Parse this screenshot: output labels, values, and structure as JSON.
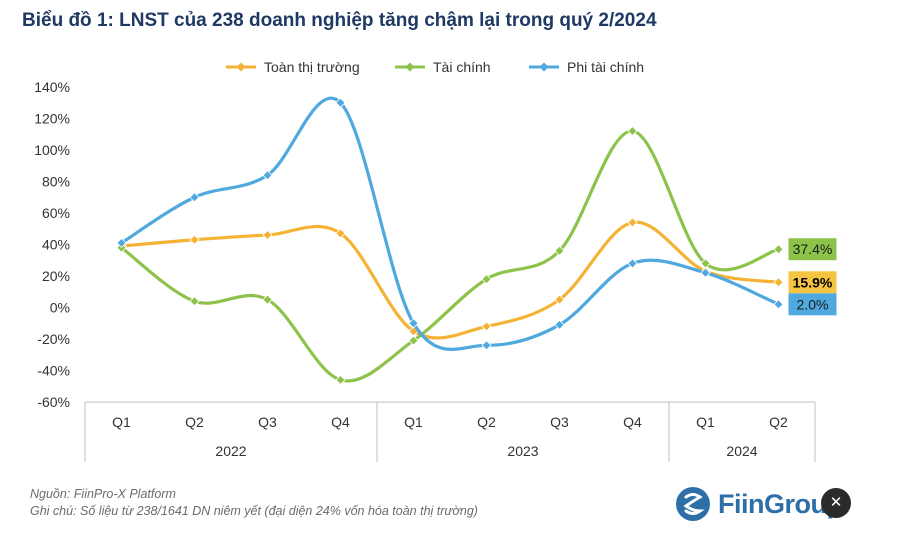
{
  "title": "Biểu đồ 1: LNST của 238 doanh nghiệp tăng chậm lại trong quý 2/2024",
  "footer": {
    "source": "Nguồn: FiinPro-X Platform",
    "note": "Ghi chú: Số liệu từ 238/1641 DN niêm yết (đại diện 24% vốn hóa toàn thị trường)"
  },
  "logo": {
    "text": "FiinGroup",
    "icon": "fiingroup-logo-icon"
  },
  "corner_badge": {
    "glyph": "✕",
    "icon": "close-icon"
  },
  "chart_data": {
    "type": "line",
    "categories": [
      "Q1",
      "Q2",
      "Q3",
      "Q4",
      "Q1",
      "Q2",
      "Q3",
      "Q4",
      "Q1",
      "Q2"
    ],
    "groups": [
      {
        "label": "2022",
        "span": 4
      },
      {
        "label": "2023",
        "span": 4
      },
      {
        "label": "2024",
        "span": 2
      }
    ],
    "yticks": [
      "140%",
      "120%",
      "100%",
      "80%",
      "60%",
      "40%",
      "20%",
      "0%",
      "-20%",
      "-40%",
      "-60%"
    ],
    "ylim": [
      -60,
      140
    ],
    "legend_position": "top",
    "series": [
      {
        "name": "Toàn thị trường",
        "color": "#f5b335",
        "values": [
          39,
          43,
          46,
          47,
          -15,
          -12,
          5,
          54,
          23,
          16
        ],
        "end_label": "15.9%",
        "end_label_bg": "#f5c542"
      },
      {
        "name": "Tài chính",
        "color": "#8dc34b",
        "values": [
          38,
          4,
          5,
          -46,
          -21,
          18,
          36,
          112,
          28,
          37
        ],
        "end_label": "37.4%",
        "end_label_bg": "#8dc34b"
      },
      {
        "name": "Phi tài chính",
        "color": "#4fa8de",
        "values": [
          41,
          70,
          84,
          130,
          -10,
          -24,
          -11,
          28,
          22,
          2
        ],
        "end_label": "2.0%",
        "end_label_bg": "#4fa8de"
      }
    ]
  }
}
